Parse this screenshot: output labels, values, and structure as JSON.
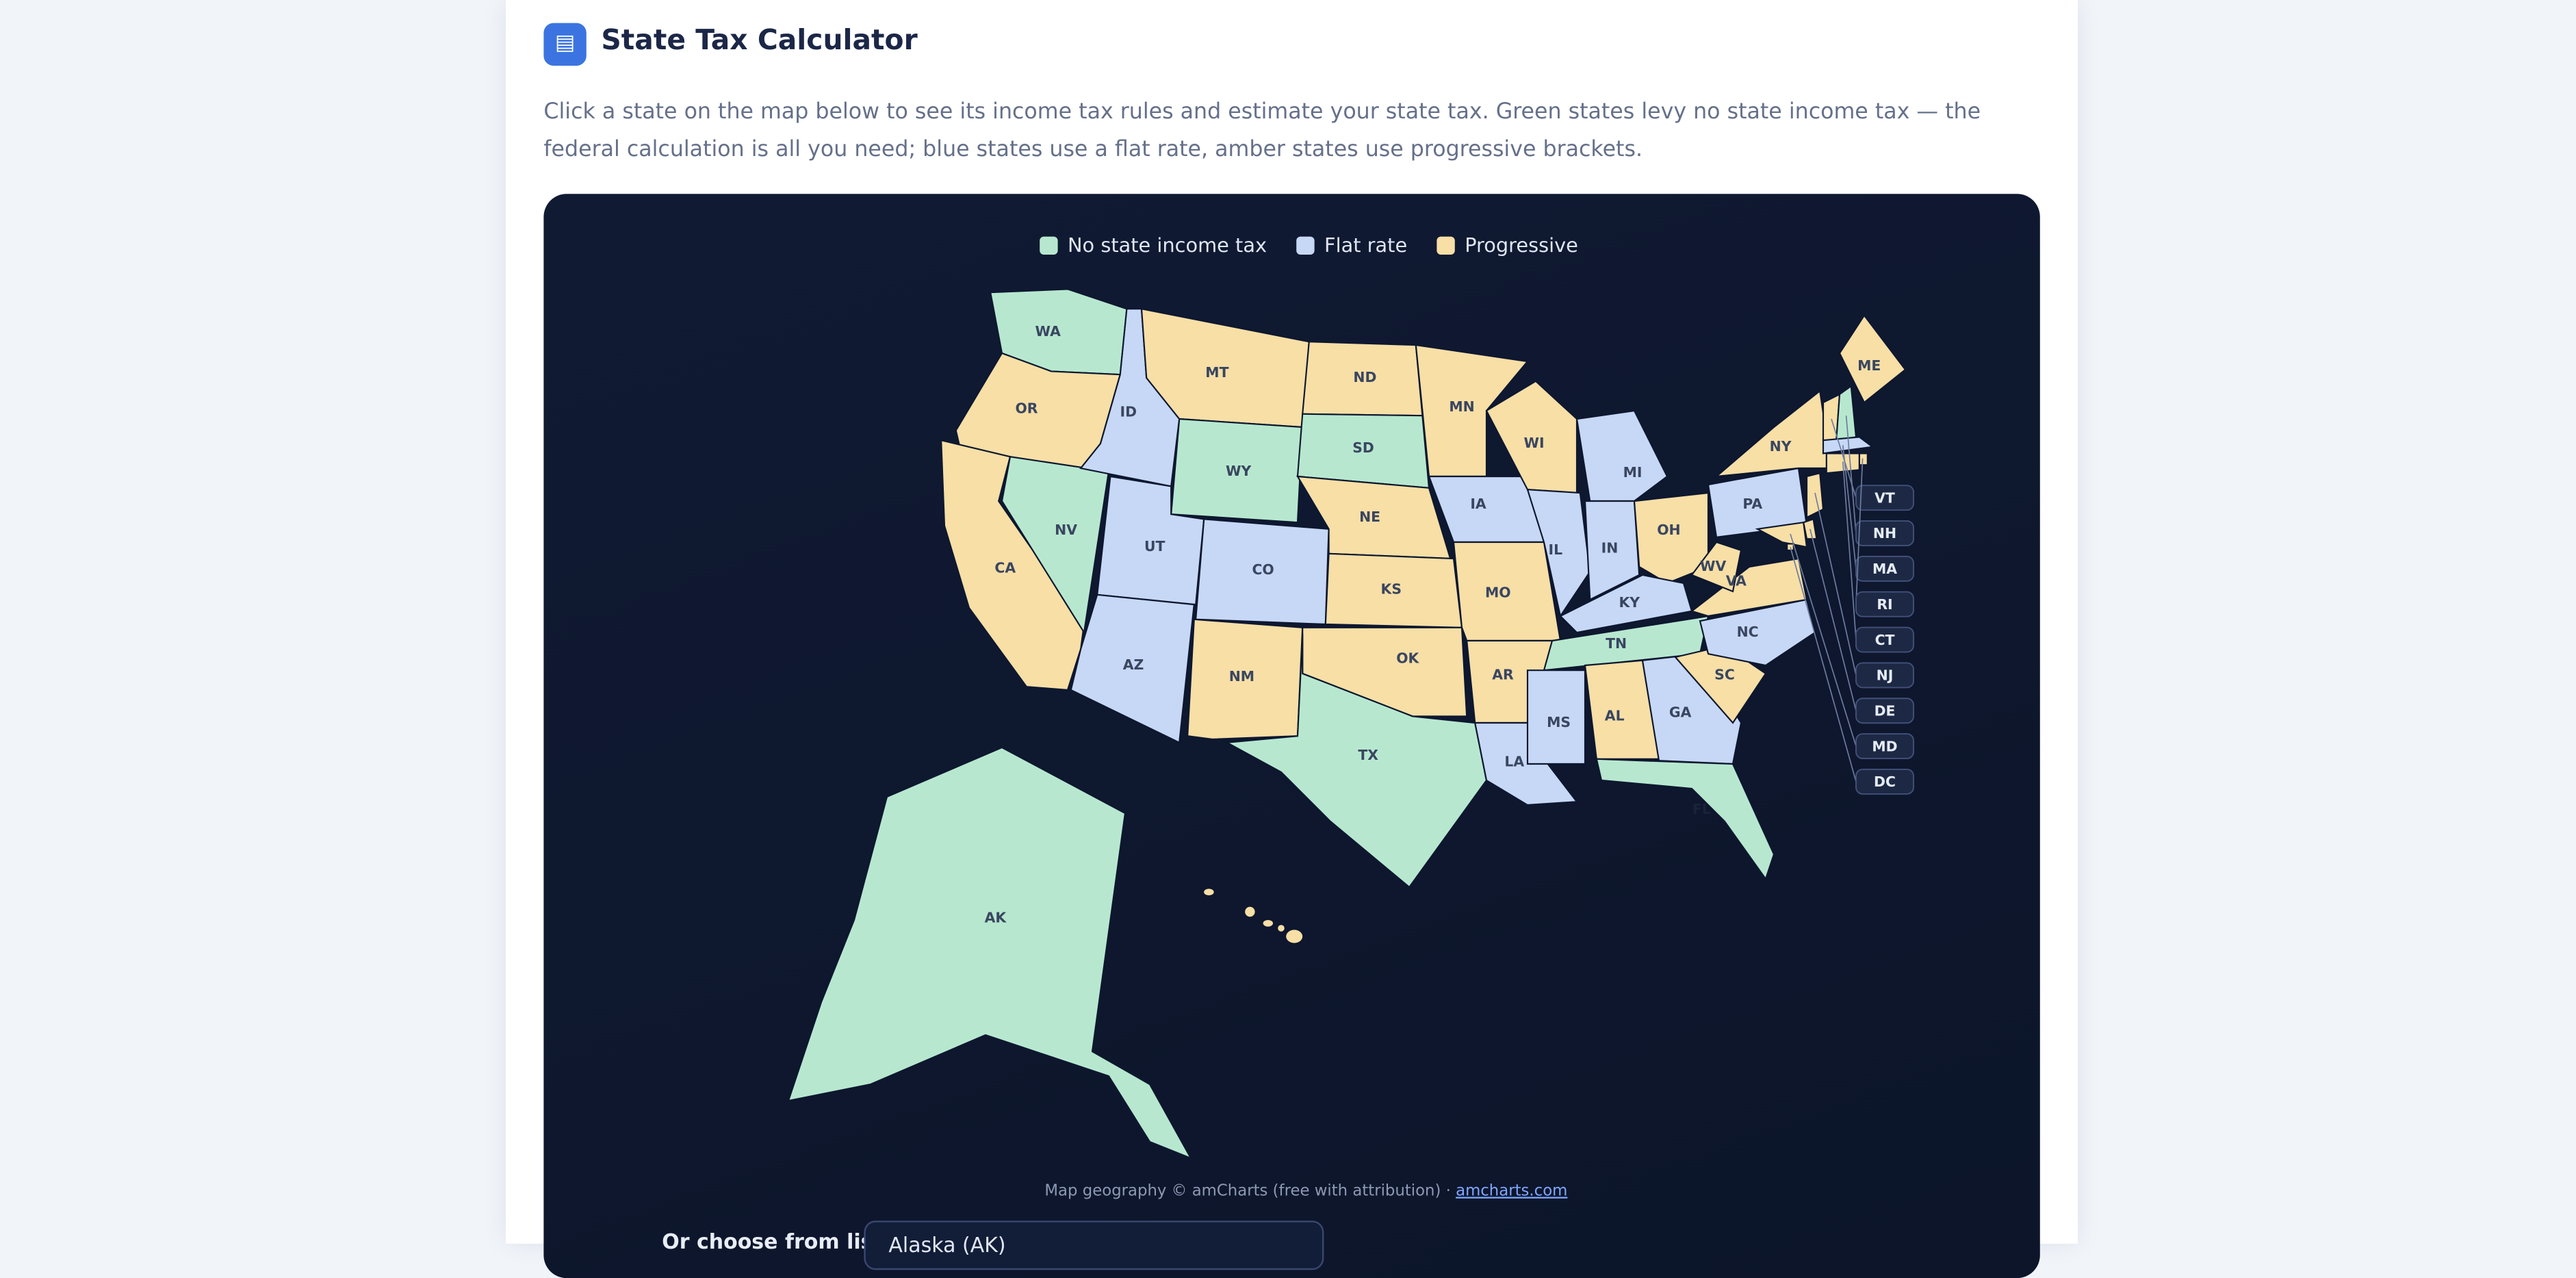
{
  "header": {
    "title": "State Tax Calculator",
    "description": "Click a state on the map below to see its income tax rules and estimate your state tax. Green states levy no state income tax — the federal calculation is all you need; blue states use a flat rate, amber states use progressive brackets."
  },
  "legend": [
    {
      "label": "No state income tax",
      "color": "#b7e8cf"
    },
    {
      "label": "Flat rate",
      "color": "#c7d8f6"
    },
    {
      "label": "Progressive",
      "color": "#f7dfa6"
    }
  ],
  "states": [
    {
      "code": "WA",
      "category": 0
    },
    {
      "code": "OR",
      "category": 2
    },
    {
      "code": "CA",
      "category": 2
    },
    {
      "code": "NV",
      "category": 0
    },
    {
      "code": "ID",
      "category": 1
    },
    {
      "code": "MT",
      "category": 2
    },
    {
      "code": "WY",
      "category": 0
    },
    {
      "code": "UT",
      "category": 1
    },
    {
      "code": "AZ",
      "category": 1
    },
    {
      "code": "CO",
      "category": 1
    },
    {
      "code": "NM",
      "category": 2
    },
    {
      "code": "ND",
      "category": 2
    },
    {
      "code": "SD",
      "category": 0
    },
    {
      "code": "NE",
      "category": 2
    },
    {
      "code": "KS",
      "category": 2
    },
    {
      "code": "OK",
      "category": 2
    },
    {
      "code": "TX",
      "category": 0
    },
    {
      "code": "MN",
      "category": 2
    },
    {
      "code": "IA",
      "category": 1
    },
    {
      "code": "MO",
      "category": 2
    },
    {
      "code": "AR",
      "category": 2
    },
    {
      "code": "LA",
      "category": 1
    },
    {
      "code": "WI",
      "category": 2
    },
    {
      "code": "IL",
      "category": 1
    },
    {
      "code": "MI",
      "category": 1
    },
    {
      "code": "IN",
      "category": 1
    },
    {
      "code": "OH",
      "category": 2
    },
    {
      "code": "KY",
      "category": 1
    },
    {
      "code": "TN",
      "category": 0
    },
    {
      "code": "MS",
      "category": 1
    },
    {
      "code": "AL",
      "category": 2
    },
    {
      "code": "GA",
      "category": 1
    },
    {
      "code": "FL",
      "category": 0
    },
    {
      "code": "SC",
      "category": 2
    },
    {
      "code": "NC",
      "category": 1
    },
    {
      "code": "VA",
      "category": 2
    },
    {
      "code": "WV",
      "category": 2
    },
    {
      "code": "PA",
      "category": 1
    },
    {
      "code": "NY",
      "category": 2
    },
    {
      "code": "ME",
      "category": 2
    },
    {
      "code": "AK",
      "category": 0
    },
    {
      "code": "VT",
      "category": 2
    },
    {
      "code": "NH",
      "category": 0
    },
    {
      "code": "MA",
      "category": 1
    },
    {
      "code": "RI",
      "category": 2
    },
    {
      "code": "CT",
      "category": 2
    },
    {
      "code": "NJ",
      "category": 2
    },
    {
      "code": "DE",
      "category": 2
    },
    {
      "code": "MD",
      "category": 2
    },
    {
      "code": "DC",
      "category": 2
    }
  ],
  "attribution": {
    "text": "Map geography © amCharts (free with attribution) ·",
    "link": "amcharts.com"
  },
  "picker": {
    "label": "Or choose from list",
    "selected": "Alaska (AK)"
  }
}
